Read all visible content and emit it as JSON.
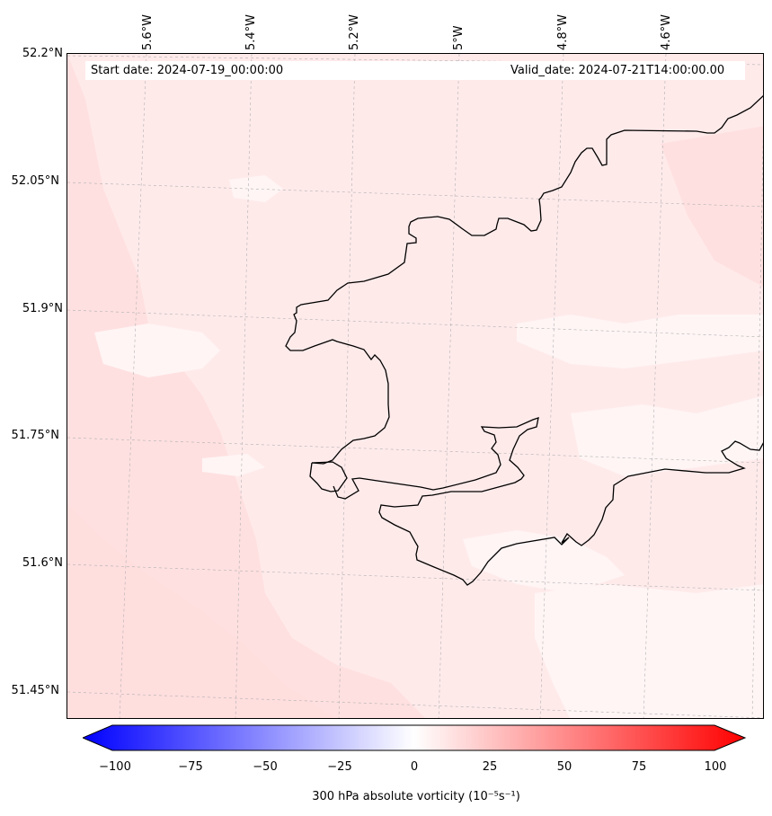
{
  "map": {
    "start_date": "Start date: 2024-07-19_00:00:00",
    "valid_date": "Valid_date: 2024-07-21T14:00:00.00",
    "lon_labels": [
      "5.6°W",
      "5.4°W",
      "5.2°W",
      "5°W",
      "4.8°W",
      "4.6°W"
    ],
    "lat_labels": [
      "52.2°N",
      "52.05°N",
      "51.9°N",
      "51.75°N",
      "51.6°N",
      "51.45°N"
    ],
    "field_colors": {
      "background": "#ffeaea",
      "light": "#fff5f5",
      "medium": "#ffe0e0"
    }
  },
  "colorbar": {
    "label": "300 hPa absolute vorticity (10⁻⁵s⁻¹)",
    "tick_labels": [
      "−100",
      "−75",
      "−50",
      "−25",
      "0",
      "25",
      "50",
      "75",
      "100"
    ],
    "min": -100,
    "max": 100,
    "min_color": "#0000ff",
    "mid_color": "#ffffff",
    "max_color": "#ff0000"
  }
}
